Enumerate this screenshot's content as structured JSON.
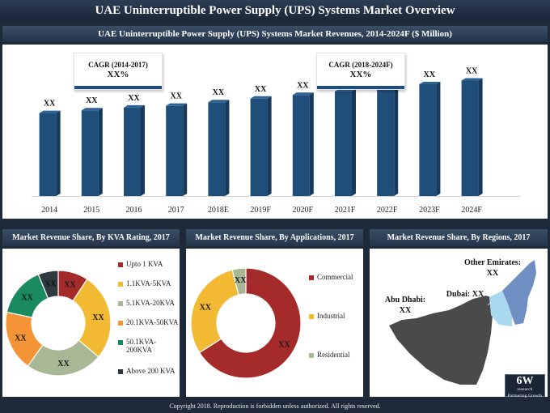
{
  "page_title": "UAE Uninterruptible Power Supply (UPS) Systems Market Overview",
  "footer": "Copyright 2018. Reproduction is forbidden unless authorized. All rights reserved.",
  "logo": {
    "text": "6W",
    "sub": "research",
    "tagline": "Partnering Growth"
  },
  "cagr": [
    {
      "label": "CAGR (2014-2017)",
      "value": "XX%"
    },
    {
      "label": "CAGR (2018-2024F)",
      "value": "XX%"
    }
  ],
  "colors": {
    "bar": "#1f4e79",
    "header_dark": "#24334a",
    "kva": [
      "#a52a2a",
      "#f2b932",
      "#a9b894",
      "#f49436",
      "#1a8a60",
      "#2e3a40"
    ],
    "applications": [
      "#a52a2a",
      "#f2b932",
      "#a9b894"
    ],
    "map_land": "#4a4a4a",
    "map_other": "#6f8fc2",
    "map_dubai": "#a9d9ee"
  },
  "chart_data": [
    {
      "type": "bar",
      "title": "UAE Uninterruptible Power Supply (UPS) Systems Market Revenues, 2014-2024F ($ Million)",
      "categories": [
        "2014",
        "2015",
        "2016",
        "2017",
        "2018E",
        "2019F",
        "2020F",
        "2021F",
        "2022F",
        "2023F",
        "2024F"
      ],
      "values": [
        92,
        95,
        98,
        100,
        104,
        108,
        112,
        116,
        120,
        124,
        128
      ],
      "data_labels": [
        "XX",
        "XX",
        "XX",
        "XX",
        "XX",
        "XX",
        "XX",
        "XX",
        "XX",
        "XX",
        "XX"
      ],
      "ylim": [
        0,
        150
      ],
      "xlabel": "",
      "ylabel": ""
    },
    {
      "type": "pie",
      "title": "Market Revenue Share, By KVA Rating, 2017",
      "categories": [
        "Upto 1 KVA",
        "1.1KVA-5KVA",
        "5.1KVA-20KVA",
        "20.1KVA-50KVA",
        "50.1KVA-200KVA",
        "Above 200 KVA"
      ],
      "values": [
        9,
        26,
        23,
        18,
        15,
        6
      ],
      "data_labels": [
        "XX",
        "XX",
        "XX",
        "XX",
        "XX",
        "XX"
      ]
    },
    {
      "type": "pie",
      "title": "Market Revenue Share, By Applications, 2017",
      "categories": [
        "Commercial",
        "Industrial",
        "Residential"
      ],
      "values": [
        66,
        30,
        4
      ],
      "data_labels": [
        "XX",
        "XX",
        "XX"
      ]
    }
  ],
  "regions": {
    "title": "Market Revenue Share, By Regions, 2017",
    "other_emirates": {
      "label": "Other Emirates:",
      "value": "XX"
    },
    "dubai": {
      "label": "Dubai: XX"
    },
    "abu_dhabi": {
      "label": "Abu Dhabi:",
      "value": "XX"
    }
  }
}
